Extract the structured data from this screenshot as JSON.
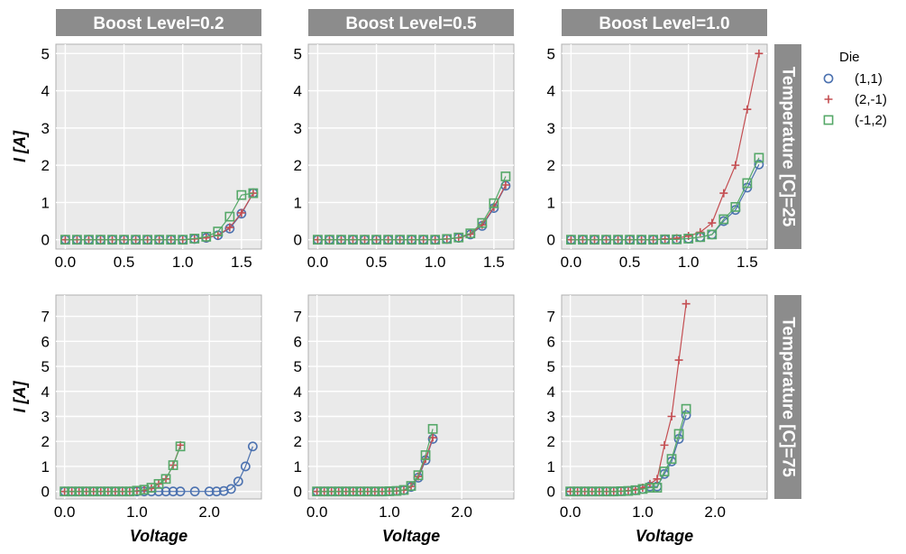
{
  "chart_data": {
    "type": "line",
    "facet_col_labels": [
      "Boost Level=0.2",
      "Boost Level=0.5",
      "Boost Level=1.0"
    ],
    "facet_row_labels": [
      "Temperature [C]=25",
      "Temperature [C]=75"
    ],
    "xlabel": "Voltage",
    "ylabel": "I [A]",
    "legend": {
      "title": "Die",
      "placement": "right",
      "entries": [
        "(1,1)",
        "(2,-1)",
        "(-1,2)"
      ]
    },
    "grid": true,
    "rows": [
      {
        "xlim": [
          -0.08,
          1.67
        ],
        "ylim": [
          -0.25,
          5.25
        ],
        "xticks": [
          0.0,
          0.5,
          1.0,
          1.5
        ],
        "xtick_labels": [
          "0.0",
          "0.5",
          "1.0",
          "1.5"
        ],
        "yticks": [
          0,
          1,
          2,
          3,
          4,
          5
        ],
        "ytick_labels": [
          "0",
          "1",
          "2",
          "3",
          "4",
          "5"
        ]
      },
      {
        "xlim": [
          -0.12,
          2.72
        ],
        "ylim": [
          -0.3,
          7.85
        ],
        "xticks": [
          0.0,
          1.0,
          2.0
        ],
        "xtick_labels": [
          "0.0",
          "1.0",
          "2.0"
        ],
        "yticks": [
          0,
          1,
          2,
          3,
          4,
          5,
          6,
          7
        ],
        "ytick_labels": [
          "0",
          "1",
          "2",
          "3",
          "4",
          "5",
          "6",
          "7"
        ]
      }
    ],
    "panels": [
      {
        "row": 0,
        "col": 0,
        "series": [
          {
            "name": "(1,1)",
            "x": [
              0,
              0.1,
              0.2,
              0.3,
              0.4,
              0.5,
              0.6,
              0.7,
              0.8,
              0.9,
              1.0,
              1.1,
              1.2,
              1.3,
              1.4,
              1.5,
              1.6
            ],
            "y": [
              0,
              0,
              0,
              0,
              0,
              0,
              0,
              0,
              0,
              0,
              0,
              0.02,
              0.05,
              0.12,
              0.3,
              0.7,
              1.25
            ]
          },
          {
            "name": "(2,-1)",
            "x": [
              0,
              0.1,
              0.2,
              0.3,
              0.4,
              0.5,
              0.6,
              0.7,
              0.8,
              0.9,
              1.0,
              1.1,
              1.2,
              1.3,
              1.4,
              1.5,
              1.6
            ],
            "y": [
              0,
              0,
              0,
              0,
              0,
              0,
              0,
              0,
              0,
              0,
              0,
              0.02,
              0.05,
              0.12,
              0.33,
              0.72,
              1.25
            ]
          },
          {
            "name": "(-1,2)",
            "x": [
              0,
              0.1,
              0.2,
              0.3,
              0.4,
              0.5,
              0.6,
              0.7,
              0.8,
              0.9,
              1.0,
              1.1,
              1.2,
              1.3,
              1.4,
              1.5,
              1.6
            ],
            "y": [
              0,
              0,
              0,
              0,
              0,
              0,
              0,
              0,
              0,
              0,
              0,
              0.03,
              0.08,
              0.22,
              0.62,
              1.2,
              1.25
            ]
          }
        ]
      },
      {
        "row": 0,
        "col": 1,
        "series": [
          {
            "name": "(1,1)",
            "x": [
              0,
              0.1,
              0.2,
              0.3,
              0.4,
              0.5,
              0.6,
              0.7,
              0.8,
              0.9,
              1.0,
              1.1,
              1.2,
              1.3,
              1.4,
              1.5,
              1.6
            ],
            "y": [
              0,
              0,
              0,
              0,
              0,
              0,
              0,
              0,
              0,
              0,
              0,
              0.02,
              0.05,
              0.14,
              0.37,
              0.85,
              1.45
            ]
          },
          {
            "name": "(2,-1)",
            "x": [
              0,
              0.1,
              0.2,
              0.3,
              0.4,
              0.5,
              0.6,
              0.7,
              0.8,
              0.9,
              1.0,
              1.1,
              1.2,
              1.3,
              1.4,
              1.5,
              1.6
            ],
            "y": [
              0,
              0,
              0,
              0,
              0,
              0,
              0,
              0,
              0,
              0,
              0,
              0.02,
              0.05,
              0.15,
              0.4,
              0.88,
              1.47
            ]
          },
          {
            "name": "(-1,2)",
            "x": [
              0,
              0.1,
              0.2,
              0.3,
              0.4,
              0.5,
              0.6,
              0.7,
              0.8,
              0.9,
              1.0,
              1.1,
              1.2,
              1.3,
              1.4,
              1.5,
              1.6
            ],
            "y": [
              0,
              0,
              0,
              0,
              0,
              0,
              0,
              0,
              0,
              0,
              0,
              0.02,
              0.06,
              0.17,
              0.45,
              0.98,
              1.7
            ]
          }
        ]
      },
      {
        "row": 0,
        "col": 2,
        "series": [
          {
            "name": "(1,1)",
            "x": [
              0,
              0.1,
              0.2,
              0.3,
              0.4,
              0.5,
              0.6,
              0.7,
              0.8,
              0.9,
              1.0,
              1.1,
              1.2,
              1.3,
              1.4,
              1.5,
              1.6
            ],
            "y": [
              0,
              0,
              0,
              0,
              0,
              0,
              0,
              0,
              0.01,
              0.01,
              0.03,
              0.07,
              0.14,
              0.5,
              0.8,
              1.4,
              2.02
            ]
          },
          {
            "name": "(2,-1)",
            "x": [
              0,
              0.1,
              0.2,
              0.3,
              0.4,
              0.5,
              0.6,
              0.7,
              0.8,
              0.9,
              1.0,
              1.1,
              1.2,
              1.3,
              1.4,
              1.5,
              1.6
            ],
            "y": [
              0,
              0,
              0,
              0,
              0,
              0,
              0,
              0,
              0.02,
              0.04,
              0.1,
              0.2,
              0.45,
              1.25,
              2.0,
              3.5,
              5.0
            ]
          },
          {
            "name": "(-1,2)",
            "x": [
              0,
              0.1,
              0.2,
              0.3,
              0.4,
              0.5,
              0.6,
              0.7,
              0.8,
              0.9,
              1.0,
              1.1,
              1.2,
              1.3,
              1.4,
              1.5,
              1.6
            ],
            "y": [
              0,
              0,
              0,
              0,
              0,
              0,
              0,
              0,
              0.01,
              0.01,
              0.03,
              0.07,
              0.14,
              0.55,
              0.88,
              1.52,
              2.2
            ]
          }
        ]
      },
      {
        "row": 1,
        "col": 0,
        "series": [
          {
            "name": "(1,1)",
            "x": [
              0,
              0.1,
              0.2,
              0.3,
              0.4,
              0.5,
              0.6,
              0.7,
              0.8,
              0.9,
              1.0,
              1.1,
              1.2,
              1.3,
              1.4,
              1.5,
              1.6,
              1.8,
              2.0,
              2.1,
              2.2,
              2.3,
              2.4,
              2.5,
              2.6
            ],
            "y": [
              0,
              0,
              0,
              0,
              0,
              0,
              0,
              0,
              0,
              0,
              0,
              0,
              0,
              0,
              0,
              0,
              0,
              0,
              0,
              0,
              0.02,
              0.1,
              0.4,
              1.0,
              1.8
            ]
          },
          {
            "name": "(2,-1)",
            "x": [
              0,
              0.1,
              0.2,
              0.3,
              0.4,
              0.5,
              0.6,
              0.7,
              0.8,
              0.9,
              1.0,
              1.1,
              1.2,
              1.3,
              1.4,
              1.5,
              1.6
            ],
            "y": [
              0,
              0,
              0,
              0,
              0,
              0,
              0,
              0,
              0,
              0,
              0.02,
              0.05,
              0.12,
              0.3,
              0.5,
              1.05,
              1.85
            ]
          },
          {
            "name": "(-1,2)",
            "x": [
              0,
              0.1,
              0.2,
              0.3,
              0.4,
              0.5,
              0.6,
              0.7,
              0.8,
              0.9,
              1.0,
              1.1,
              1.2,
              1.3,
              1.4,
              1.5,
              1.6
            ],
            "y": [
              0,
              0,
              0,
              0,
              0,
              0,
              0,
              0,
              0,
              0,
              0.03,
              0.07,
              0.15,
              0.3,
              0.5,
              1.05,
              1.8
            ]
          }
        ]
      },
      {
        "row": 1,
        "col": 1,
        "series": [
          {
            "name": "(1,1)",
            "x": [
              0,
              0.1,
              0.2,
              0.3,
              0.4,
              0.5,
              0.6,
              0.7,
              0.8,
              0.9,
              1.0,
              1.1,
              1.2,
              1.3,
              1.4,
              1.5,
              1.6
            ],
            "y": [
              0,
              0,
              0,
              0,
              0,
              0,
              0,
              0,
              0,
              0,
              0.01,
              0.02,
              0.05,
              0.18,
              0.55,
              1.25,
              2.1
            ]
          },
          {
            "name": "(2,-1)",
            "x": [
              0,
              0.1,
              0.2,
              0.3,
              0.4,
              0.5,
              0.6,
              0.7,
              0.8,
              0.9,
              1.0,
              1.1,
              1.2,
              1.3,
              1.4,
              1.5,
              1.6
            ],
            "y": [
              0,
              0,
              0,
              0,
              0,
              0,
              0,
              0,
              0,
              0,
              0.01,
              0.02,
              0.05,
              0.2,
              0.6,
              1.3,
              2.15
            ]
          },
          {
            "name": "(-1,2)",
            "x": [
              0,
              0.1,
              0.2,
              0.3,
              0.4,
              0.5,
              0.6,
              0.7,
              0.8,
              0.9,
              1.0,
              1.1,
              1.2,
              1.3,
              1.4,
              1.5,
              1.6
            ],
            "y": [
              0,
              0,
              0,
              0,
              0,
              0,
              0,
              0,
              0,
              0,
              0.01,
              0.02,
              0.06,
              0.22,
              0.65,
              1.45,
              2.5
            ]
          }
        ]
      },
      {
        "row": 1,
        "col": 2,
        "series": [
          {
            "name": "(1,1)",
            "x": [
              0,
              0.1,
              0.2,
              0.3,
              0.4,
              0.5,
              0.6,
              0.7,
              0.8,
              0.9,
              1.0,
              1.1,
              1.2,
              1.3,
              1.4,
              1.5,
              1.6
            ],
            "y": [
              0,
              0,
              0,
              0,
              0,
              0,
              0,
              0.01,
              0.02,
              0.05,
              0.1,
              0.2,
              0.2,
              0.7,
              1.2,
              2.1,
              3.05
            ]
          },
          {
            "name": "(2,-1)",
            "x": [
              0,
              0.1,
              0.2,
              0.3,
              0.4,
              0.5,
              0.6,
              0.7,
              0.8,
              0.9,
              1.0,
              1.1,
              1.2,
              1.3,
              1.4,
              1.5,
              1.6
            ],
            "y": [
              0,
              0,
              0,
              0,
              0,
              0,
              0,
              0.01,
              0.03,
              0.08,
              0.15,
              0.3,
              0.5,
              1.85,
              3.0,
              5.25,
              7.5
            ]
          },
          {
            "name": "(-1,2)",
            "x": [
              0,
              0.1,
              0.2,
              0.3,
              0.4,
              0.5,
              0.6,
              0.7,
              0.8,
              0.9,
              1.0,
              1.1,
              1.2,
              1.3,
              1.4,
              1.5,
              1.6
            ],
            "y": [
              0,
              0,
              0,
              0,
              0,
              0,
              0,
              0.01,
              0.02,
              0.05,
              0.1,
              0.15,
              0.15,
              0.8,
              1.3,
              2.3,
              3.3
            ]
          }
        ]
      }
    ]
  },
  "colors": {
    "series": [
      "#4c72b0",
      "#c44e52",
      "#55a868"
    ],
    "panel_bg": "#eaeaea",
    "grid": "#ffffff",
    "strip_bg": "#8c8c8c",
    "strip_text": "#ffffff"
  },
  "markers": [
    "circle",
    "plus",
    "square"
  ]
}
